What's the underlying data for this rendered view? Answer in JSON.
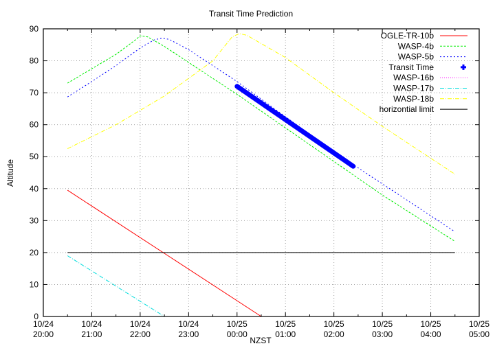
{
  "chart_data": {
    "type": "line",
    "title": "Transit Time Prediction",
    "xlabel": "NZST",
    "ylabel": "Altitude",
    "xlim_hours": [
      0,
      9
    ],
    "ylim": [
      0,
      90
    ],
    "grid": true,
    "legend_position": "top-right-inside",
    "x_ticks": [
      {
        "date": "10/24",
        "time": "20:00"
      },
      {
        "date": "10/24",
        "time": "21:00"
      },
      {
        "date": "10/24",
        "time": "22:00"
      },
      {
        "date": "10/24",
        "time": "23:00"
      },
      {
        "date": "10/25",
        "time": "00:00"
      },
      {
        "date": "10/25",
        "time": "01:00"
      },
      {
        "date": "10/25",
        "time": "02:00"
      },
      {
        "date": "10/25",
        "time": "03:00"
      },
      {
        "date": "10/25",
        "time": "04:00"
      },
      {
        "date": "10/25",
        "time": "05:00"
      }
    ],
    "y_ticks": [
      0,
      10,
      20,
      30,
      40,
      50,
      60,
      70,
      80,
      90
    ],
    "series": [
      {
        "name": "OGLE-TR-10b",
        "color": "#ff0000",
        "dash": "",
        "x_hours": [
          0.5,
          4.5
        ],
        "y": [
          39.5,
          0
        ]
      },
      {
        "name": "WASP-4b",
        "color": "#00ee00",
        "dash": "3,2",
        "x_hours": [
          0.5,
          1.0,
          1.5,
          1.9,
          2.0,
          2.15,
          2.5,
          3.0,
          4.0,
          5.0,
          6.0,
          7.0,
          8.5
        ],
        "y": [
          73,
          77.5,
          82,
          86.5,
          87.8,
          87.5,
          84.5,
          79.5,
          69.5,
          59,
          48.5,
          38,
          23.5
        ]
      },
      {
        "name": "WASP-5b",
        "color": "#0000ff",
        "dash": "2,3",
        "x_hours": [
          0.5,
          1.0,
          1.5,
          2.0,
          2.3,
          2.45,
          2.6,
          3.0,
          4.0,
          5.0,
          6.0,
          7.0,
          8.5
        ],
        "y": [
          68.7,
          73.5,
          78.5,
          84,
          86.6,
          87.1,
          86.7,
          83.5,
          73.5,
          62.5,
          51.5,
          41.5,
          26.5
        ]
      },
      {
        "name": "Transit Time",
        "color": "#0000ff",
        "marker": "+",
        "x_hours": [
          4.0,
          6.4
        ],
        "y": [
          72,
          47
        ]
      },
      {
        "name": "WASP-16b",
        "color": "#ff00ff",
        "dash": "1,2",
        "x_hours": [],
        "y": []
      },
      {
        "name": "WASP-17b",
        "color": "#00dddd",
        "dash": "6,2,1,2",
        "x_hours": [
          0.5,
          2.5
        ],
        "y": [
          19,
          0
        ]
      },
      {
        "name": "WASP-18b",
        "color": "#ffff00",
        "dash": "6,2,1,2",
        "x_hours": [
          0.5,
          1.5,
          2.5,
          3.5,
          3.9,
          4.05,
          4.2,
          5.0,
          6.0,
          7.0,
          8.5
        ],
        "y": [
          52.5,
          60,
          69,
          80,
          87.5,
          88.5,
          88,
          81,
          70,
          59.5,
          44.5
        ]
      },
      {
        "name": "horizontial limit",
        "color": "#000000",
        "dash": "",
        "x_hours": [
          0.5,
          8.5
        ],
        "y": [
          20,
          20
        ]
      }
    ]
  }
}
